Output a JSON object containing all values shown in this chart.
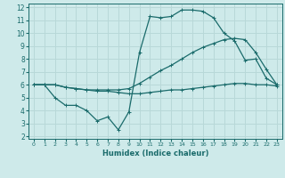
{
  "xlabel": "Humidex (Indice chaleur)",
  "bg_color": "#ceeaea",
  "grid_color": "#b8d8d8",
  "line_color": "#1a6b6b",
  "xlim": [
    -0.5,
    23.5
  ],
  "ylim": [
    1.8,
    12.3
  ],
  "xticks": [
    0,
    1,
    2,
    3,
    4,
    5,
    6,
    7,
    8,
    9,
    10,
    11,
    12,
    13,
    14,
    15,
    16,
    17,
    18,
    19,
    20,
    21,
    22,
    23
  ],
  "yticks": [
    2,
    3,
    4,
    5,
    6,
    7,
    8,
    9,
    10,
    11,
    12
  ],
  "series": [
    {
      "x": [
        0,
        1,
        2,
        3,
        4,
        5,
        6,
        7,
        8,
        9,
        10,
        11,
        12,
        13,
        14,
        15,
        16,
        17,
        18,
        19,
        20,
        21,
        22,
        23
      ],
      "y": [
        6.0,
        6.0,
        5.0,
        4.4,
        4.4,
        4.0,
        3.2,
        3.5,
        2.5,
        3.9,
        8.5,
        11.3,
        11.2,
        11.3,
        11.8,
        11.8,
        11.7,
        11.2,
        10.0,
        9.4,
        7.9,
        8.0,
        6.5,
        6.0
      ]
    },
    {
      "x": [
        0,
        1,
        2,
        3,
        4,
        5,
        6,
        7,
        8,
        9,
        10,
        11,
        12,
        13,
        14,
        15,
        16,
        17,
        18,
        19,
        20,
        21,
        22,
        23
      ],
      "y": [
        6.0,
        6.0,
        6.0,
        5.8,
        5.7,
        5.6,
        5.6,
        5.6,
        5.6,
        5.7,
        6.1,
        6.6,
        7.1,
        7.5,
        8.0,
        8.5,
        8.9,
        9.2,
        9.5,
        9.6,
        9.5,
        8.5,
        7.2,
        6.0
      ]
    },
    {
      "x": [
        0,
        1,
        2,
        3,
        4,
        5,
        6,
        7,
        8,
        9,
        10,
        11,
        12,
        13,
        14,
        15,
        16,
        17,
        18,
        19,
        20,
        21,
        22,
        23
      ],
      "y": [
        6.0,
        6.0,
        6.0,
        5.8,
        5.7,
        5.6,
        5.5,
        5.5,
        5.4,
        5.3,
        5.3,
        5.4,
        5.5,
        5.6,
        5.6,
        5.7,
        5.8,
        5.9,
        6.0,
        6.1,
        6.1,
        6.0,
        6.0,
        5.9
      ]
    }
  ]
}
